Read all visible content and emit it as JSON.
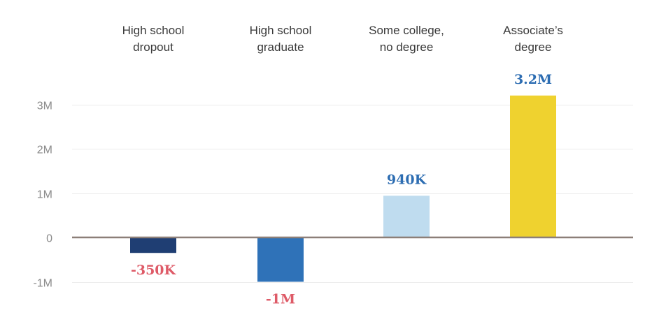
{
  "chart_data": {
    "type": "bar",
    "categories": [
      [
        "High school",
        "dropout"
      ],
      [
        "High school",
        "graduate"
      ],
      [
        "Some college,",
        "no degree"
      ],
      [
        "Associate’s",
        "degree"
      ]
    ],
    "values": [
      -350000,
      -1000000,
      940000,
      3200000
    ],
    "data_labels": [
      "-350K",
      "-1M",
      "940K",
      "3.2M"
    ],
    "bar_colors": [
      "#1f3e73",
      "#2f72b8",
      "#bfdcef",
      "#efd22f"
    ],
    "label_colors": [
      "#de5a67",
      "#de5a67",
      "#2d6db2",
      "#2d6db2"
    ],
    "y_ticks": [
      {
        "value": 3000000,
        "label": "3M"
      },
      {
        "value": 2000000,
        "label": "2M"
      },
      {
        "value": 1000000,
        "label": "1M"
      },
      {
        "value": 0,
        "label": "0"
      },
      {
        "value": -1000000,
        "label": "-1M"
      }
    ],
    "ylim": [
      -1000000,
      3200000
    ],
    "grid": true,
    "zero_line_color": "#8c7f78",
    "grid_color": "#ececec"
  }
}
